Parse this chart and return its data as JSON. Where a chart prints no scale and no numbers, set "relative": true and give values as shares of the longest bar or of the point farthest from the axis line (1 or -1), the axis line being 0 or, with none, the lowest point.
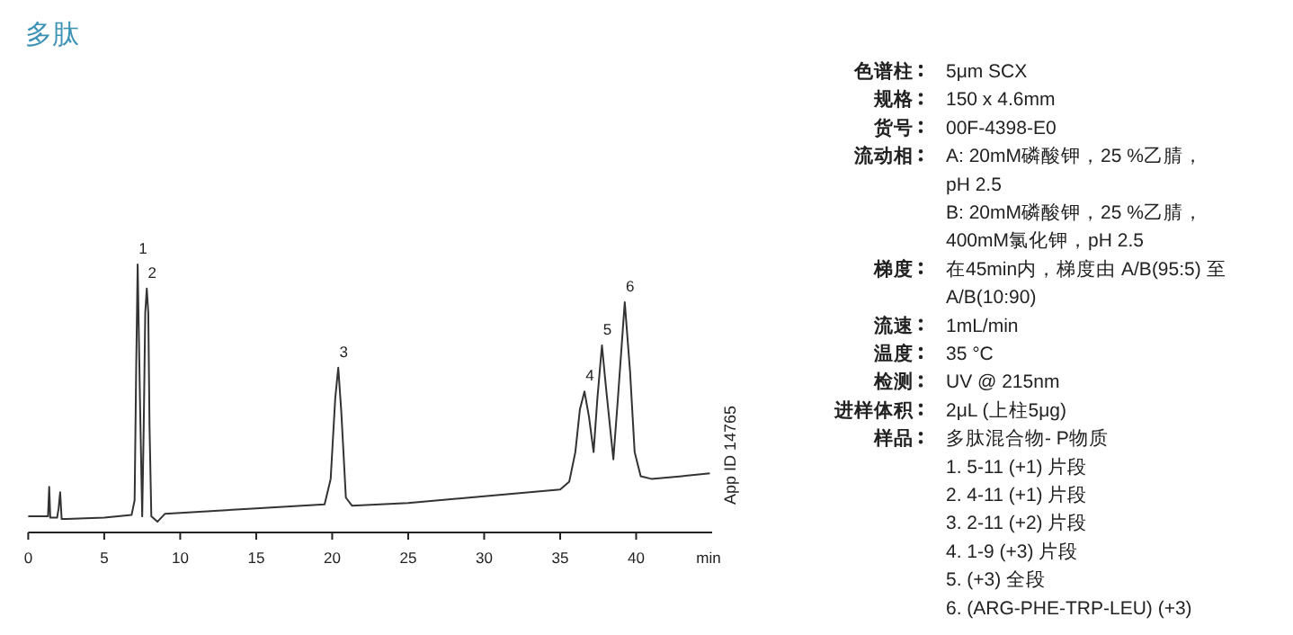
{
  "chart_data": [
    {
      "type": "line",
      "title": "多肽",
      "xlabel": "min",
      "relative": true,
      "xlim": [
        0,
        45
      ],
      "xticks": [
        0,
        5,
        10,
        15,
        20,
        25,
        30,
        35,
        40
      ],
      "grid": false,
      "marker": "none",
      "line_style": "solid",
      "series": [
        {
          "color": "#333333",
          "x": [
            0,
            1.3,
            1.38,
            1.45,
            1.9,
            2.0,
            2.1,
            2.2,
            2.5,
            5,
            6.8,
            7.0,
            7.1,
            7.2,
            7.35,
            7.5,
            7.6,
            7.7,
            7.8,
            7.9,
            7.98,
            8.1,
            8.5,
            9,
            15,
            19.5,
            19.9,
            20.2,
            20.4,
            20.6,
            20.9,
            21.3,
            25,
            30,
            35,
            35.6,
            36.0,
            36.3,
            36.6,
            36.9,
            37.2,
            37.45,
            37.75,
            38.0,
            38.5,
            38.8,
            39.25,
            39.6,
            39.9,
            40.3,
            41,
            43,
            44.85
          ],
          "values": [
            0.06,
            0.06,
            0.17,
            0.055,
            0.055,
            0.09,
            0.15,
            0.05,
            0.05,
            0.055,
            0.065,
            0.12,
            0.6,
            1.0,
            0.5,
            0.06,
            0.4,
            0.82,
            0.91,
            0.82,
            0.4,
            0.06,
            0.04,
            0.07,
            0.09,
            0.105,
            0.2,
            0.5,
            0.615,
            0.45,
            0.13,
            0.1,
            0.11,
            0.135,
            0.16,
            0.19,
            0.3,
            0.46,
            0.526,
            0.43,
            0.3,
            0.5,
            0.698,
            0.55,
            0.273,
            0.5,
            0.859,
            0.6,
            0.3,
            0.21,
            0.2,
            0.21,
            0.221
          ]
        }
      ],
      "annotations": [
        {
          "text": "1",
          "x": 7.2,
          "y": 1.0
        },
        {
          "text": "2",
          "x": 7.8,
          "y": 0.91
        },
        {
          "text": "3",
          "x": 20.4,
          "y": 0.615
        },
        {
          "text": "4",
          "x": 36.6,
          "y": 0.526
        },
        {
          "text": "5",
          "x": 37.75,
          "y": 0.698
        },
        {
          "text": "6",
          "x": 39.25,
          "y": 0.859
        },
        "App ID 14765"
      ]
    },
    {
      "type": "other",
      "categories": [
        "色谱柱",
        "规格",
        "货号",
        "流动相",
        null,
        null,
        null,
        "梯度",
        null,
        "流速",
        "温度",
        "检测",
        "进样体积",
        "样品",
        null,
        null,
        null,
        null,
        null,
        null
      ],
      "annotations": [
        "5μm SCX",
        "150 x 4.6mm",
        "00F-4398-E0",
        "A: 20mM磷酸钾，25 %乙腈，",
        "pH 2.5",
        "B: 20mM磷酸钾，25 %乙腈，",
        "400mM氯化钾，pH 2.5",
        "在45min内，梯度由 A/B(95:5) 至",
        "A/B(10:90)",
        "1mL/min",
        "35 °C",
        "UV @ 215nm",
        "2μL (上柱5μg)",
        "多肽混合物- P物质",
        "1. 5-11 (+1) 片段",
        "2. 4-11 (+1) 片段",
        "3. 2-11 (+2) 片段",
        "4. 1-9 (+3) 片段",
        "5. (+3) 全段",
        "6. (ARG-PHE-TRP-LEU) (+3)"
      ]
    }
  ]
}
